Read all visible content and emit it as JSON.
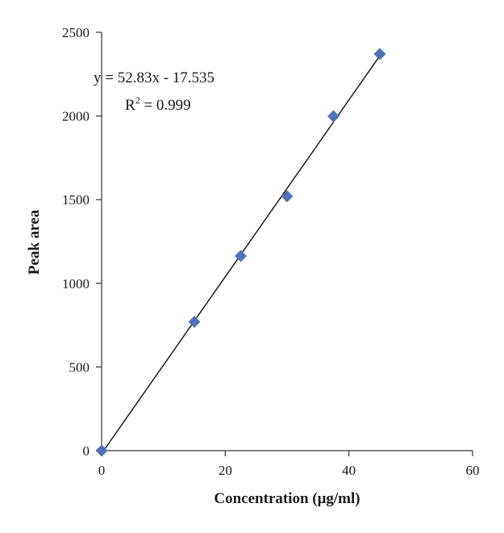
{
  "chart_data": {
    "type": "scatter",
    "xlabel": "Concentration (μg/ml)",
    "ylabel": "Peak area",
    "xlim": [
      0,
      60
    ],
    "ylim": [
      0,
      2500
    ],
    "x_ticks": [
      0,
      20,
      40,
      60
    ],
    "y_ticks": [
      0,
      500,
      1000,
      1500,
      2000,
      2500
    ],
    "grid": false,
    "legend": "none",
    "series": [
      {
        "x": [
          0,
          15,
          22.5,
          30,
          37.5,
          45
        ],
        "y": [
          0,
          770,
          1163,
          1520,
          1998,
          2370
        ],
        "marker": "diamond",
        "color": "#4f72b8"
      }
    ],
    "trendline": {
      "type": "linear",
      "slope": 52.83,
      "intercept": -17.535,
      "x_range": [
        0,
        45
      ],
      "color": "#111111"
    },
    "annotations": {
      "equation": "y = 52.83x - 17.535",
      "r2_prefix": "R",
      "r2_sup": "2",
      "r2_value": " = 0.999"
    }
  }
}
